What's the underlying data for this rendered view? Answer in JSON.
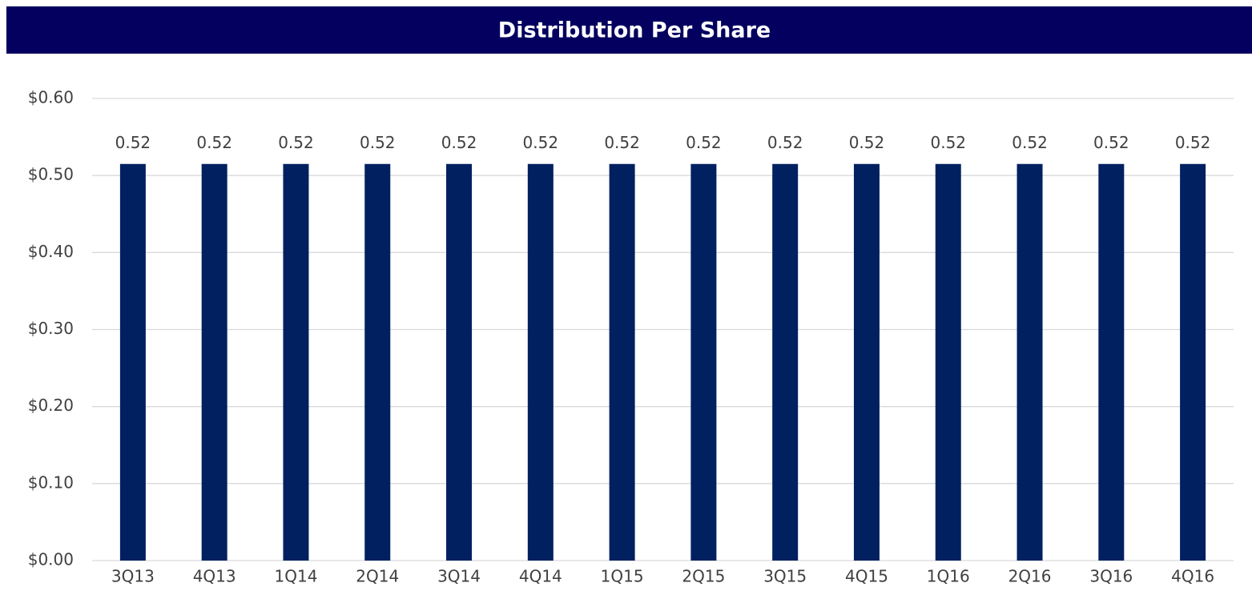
{
  "chart_data": {
    "type": "bar",
    "title": "Distribution Per Share",
    "categories": [
      "3Q13",
      "4Q13",
      "1Q14",
      "2Q14",
      "3Q14",
      "4Q14",
      "1Q15",
      "2Q15",
      "3Q15",
      "4Q15",
      "1Q16",
      "2Q16",
      "3Q16",
      "4Q16"
    ],
    "values": [
      0.515,
      0.515,
      0.515,
      0.515,
      0.515,
      0.515,
      0.515,
      0.515,
      0.515,
      0.515,
      0.515,
      0.515,
      0.515,
      0.515
    ],
    "value_labels": [
      "0.52",
      "0.52",
      "0.52",
      "0.52",
      "0.52",
      "0.52",
      "0.52",
      "0.52",
      "0.52",
      "0.52",
      "0.52",
      "0.52",
      "0.52",
      "0.52"
    ],
    "color": "#002060",
    "ylim": [
      0,
      0.6
    ],
    "yticks": [
      {
        "value": 0,
        "label": "$0.00"
      },
      {
        "value": 0.1,
        "label": "$0.10"
      },
      {
        "value": 0.2,
        "label": "$0.20"
      },
      {
        "value": 0.3,
        "label": "$0.30"
      },
      {
        "value": 0.4,
        "label": "$0.40"
      },
      {
        "value": 0.5,
        "label": "$0.50"
      },
      {
        "value": 0.6,
        "label": "$0.60"
      }
    ],
    "grid": true
  }
}
